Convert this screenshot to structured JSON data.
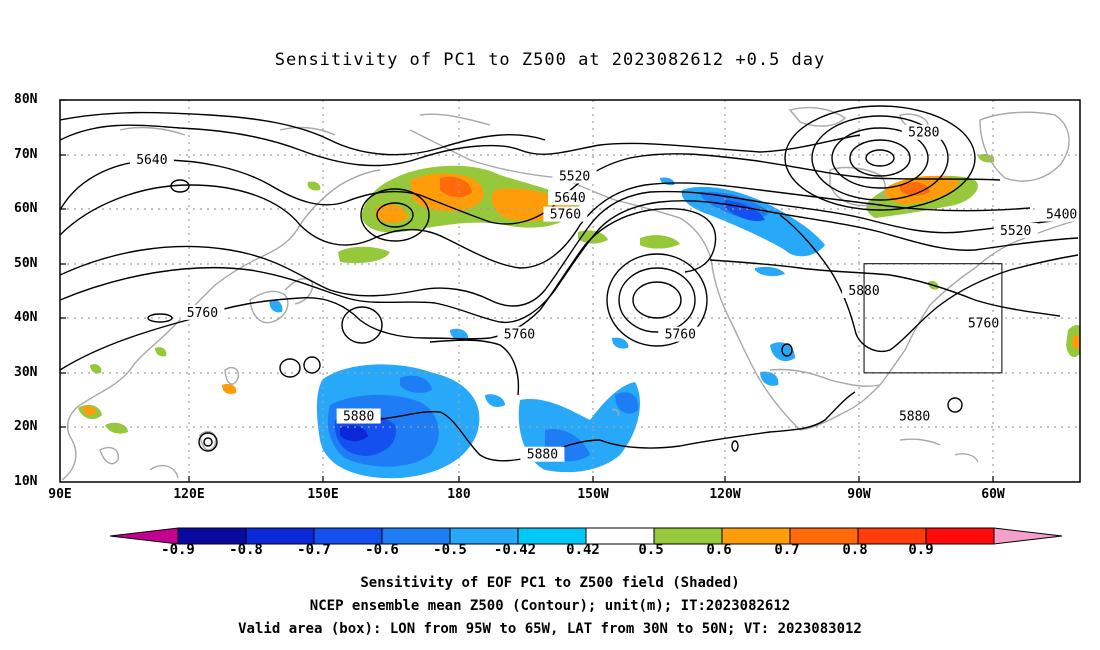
{
  "title": "Sensitivity of PC1 to Z500 at 2023082612 +0.5 day",
  "axes": {
    "y_ticks": [
      "80N",
      "70N",
      "60N",
      "50N",
      "40N",
      "30N",
      "20N",
      "10N"
    ],
    "x_ticks": [
      "90E",
      "120E",
      "150E",
      "180",
      "150W",
      "120W",
      "90W",
      "60W"
    ],
    "lon_range": [
      90,
      312
    ],
    "lat_range": [
      10,
      80
    ],
    "grid": "dotted"
  },
  "colorbar": {
    "labels": [
      "-0.9",
      "-0.8",
      "-0.7",
      "-0.6",
      "-0.5",
      "-0.42",
      "0.42",
      "0.5",
      "0.6",
      "0.7",
      "0.8",
      "0.9"
    ],
    "colors": [
      "#c40090",
      "#0a0aa0",
      "#0a28d8",
      "#1450f0",
      "#1e7cf5",
      "#28a8f8",
      "#00c8f8",
      "#ffffff",
      "#96c83c",
      "#ff9c0a",
      "#ff6a0a",
      "#ff3c0a",
      "#ff0a0a",
      "#f5a0c8"
    ]
  },
  "contour_labels": [
    {
      "text": "5640",
      "lon": 110,
      "lat": 69
    },
    {
      "text": "5520",
      "lon": 202,
      "lat": 66
    },
    {
      "text": "5640",
      "lon": 201,
      "lat": 62
    },
    {
      "text": "5760",
      "lon": 200,
      "lat": 59
    },
    {
      "text": "5280",
      "lon": 278,
      "lat": 74
    },
    {
      "text": "5400",
      "lon": 308,
      "lat": 59
    },
    {
      "text": "5520",
      "lon": 298,
      "lat": 56
    },
    {
      "text": "5760",
      "lon": 121,
      "lat": 41
    },
    {
      "text": "5760",
      "lon": 190,
      "lat": 37
    },
    {
      "text": "5760",
      "lon": 225,
      "lat": 37
    },
    {
      "text": "5880",
      "lon": 265,
      "lat": 45
    },
    {
      "text": "5760",
      "lon": 291,
      "lat": 39
    },
    {
      "text": "5880",
      "lon": 155,
      "lat": 22
    },
    {
      "text": "5880",
      "lon": 195,
      "lat": 15
    },
    {
      "text": "5880",
      "lon": 276,
      "lat": 22
    }
  ],
  "valid_box": {
    "lon": [
      265,
      295
    ],
    "lat": [
      30,
      50
    ]
  },
  "captions": [
    "Sensitivity of EOF PC1 to Z500 field (Shaded)",
    "NCEP ensemble mean Z500 (Contour); unit(m); IT:2023082612",
    "Valid area (box): LON from 95W to 65W, LAT from 30N to 50N; VT: 2023083012"
  ]
}
